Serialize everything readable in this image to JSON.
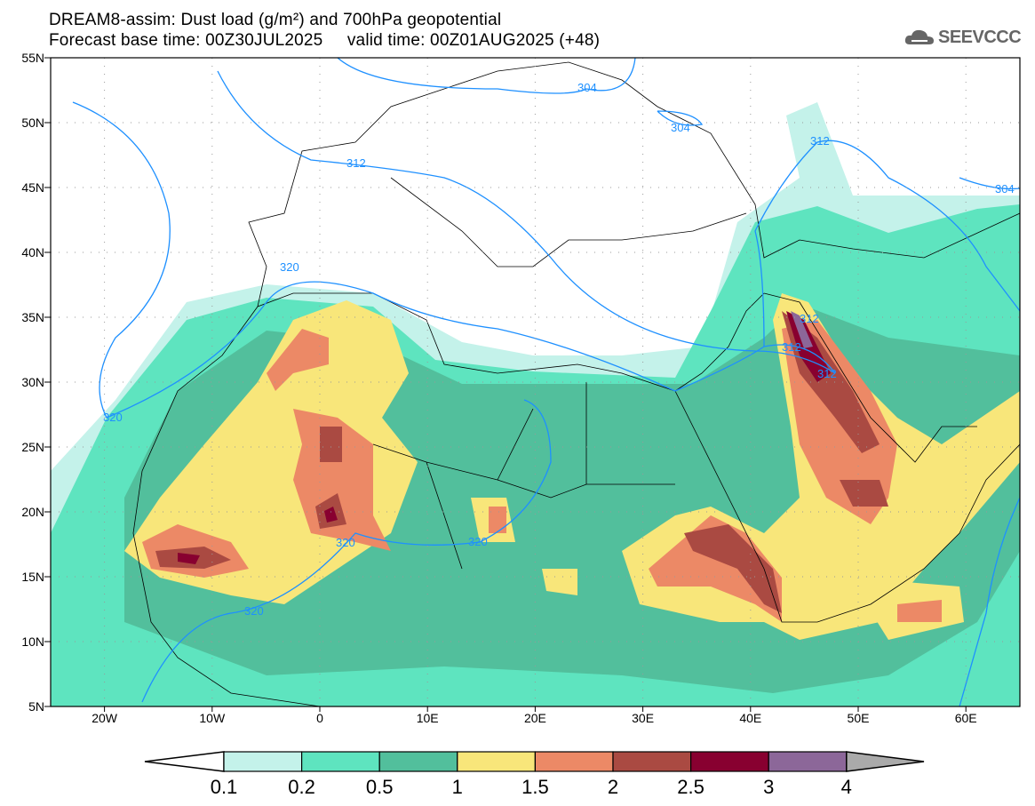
{
  "header": {
    "title_line1": "DREAM8-assim: Dust load (g/m²) and 700hPa geopotential",
    "title_line2": "Forecast base time: 00Z30JUL2025     valid time: 00Z01AUG2025 (+48)",
    "logo_text": "SEEVCCC"
  },
  "map": {
    "lat_labels": [
      "55N",
      "50N",
      "45N",
      "40N",
      "35N",
      "30N",
      "25N",
      "20N",
      "15N",
      "10N",
      "5N"
    ],
    "lon_labels": [
      "20W",
      "10W",
      "0",
      "10E",
      "20E",
      "30E",
      "40E",
      "50E",
      "60E"
    ],
    "contour_labels": [
      "304",
      "304",
      "304",
      "312",
      "312",
      "312",
      "312",
      "312",
      "320",
      "320",
      "320",
      "320",
      "320"
    ],
    "contour_color": "#1e90ff"
  },
  "colorbar": {
    "labels": [
      "0.1",
      "0.2",
      "0.5",
      "1",
      "1.5",
      "2",
      "2.5",
      "3",
      "4"
    ],
    "colors": [
      "#c4f2ea",
      "#5ee4bf",
      "#52bf9c",
      "#f8e67a",
      "#ec8966",
      "#aa4a42",
      "#880030",
      "#8c6799",
      "#aaaaaa"
    ]
  }
}
